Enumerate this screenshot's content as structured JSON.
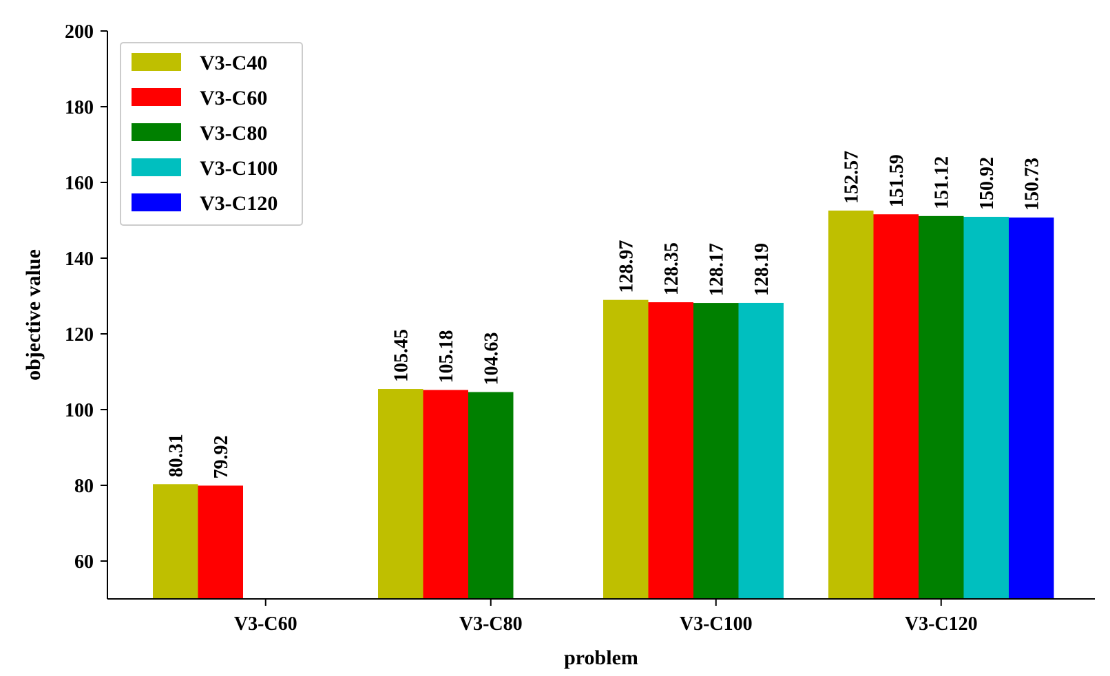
{
  "chart_data": {
    "type": "bar",
    "xlabel": "problem",
    "ylabel": "objective value",
    "ylim": [
      50,
      200
    ],
    "yticks": [
      60,
      80,
      100,
      120,
      140,
      160,
      180,
      200
    ],
    "categories": [
      "V3-C60",
      "V3-C80",
      "V3-C100",
      "V3-C120"
    ],
    "grid": false,
    "legend_position": "top-left",
    "series": [
      {
        "name": "V3-C40",
        "color": "#bfbf00",
        "values": [
          80.31,
          105.45,
          128.97,
          152.57
        ],
        "labels": [
          "80.31",
          "105.45",
          "128.97",
          "152.57"
        ]
      },
      {
        "name": "V3-C60",
        "color": "#ff0000",
        "values": [
          79.92,
          105.18,
          128.35,
          151.59
        ],
        "labels": [
          "79.92",
          "105.18",
          "128.35",
          "151.59"
        ]
      },
      {
        "name": "V3-C80",
        "color": "#008000",
        "values": [
          null,
          104.63,
          128.17,
          151.12
        ],
        "labels": [
          null,
          "104.63",
          "128.17",
          "151.12"
        ]
      },
      {
        "name": "V3-C100",
        "color": "#00bfbf",
        "values": [
          null,
          null,
          128.19,
          150.92
        ],
        "labels": [
          null,
          null,
          "128.19",
          "150.92"
        ]
      },
      {
        "name": "V3-C120",
        "color": "#0000ff",
        "values": [
          null,
          null,
          null,
          150.73
        ],
        "labels": [
          null,
          null,
          null,
          "150.73"
        ]
      }
    ]
  }
}
